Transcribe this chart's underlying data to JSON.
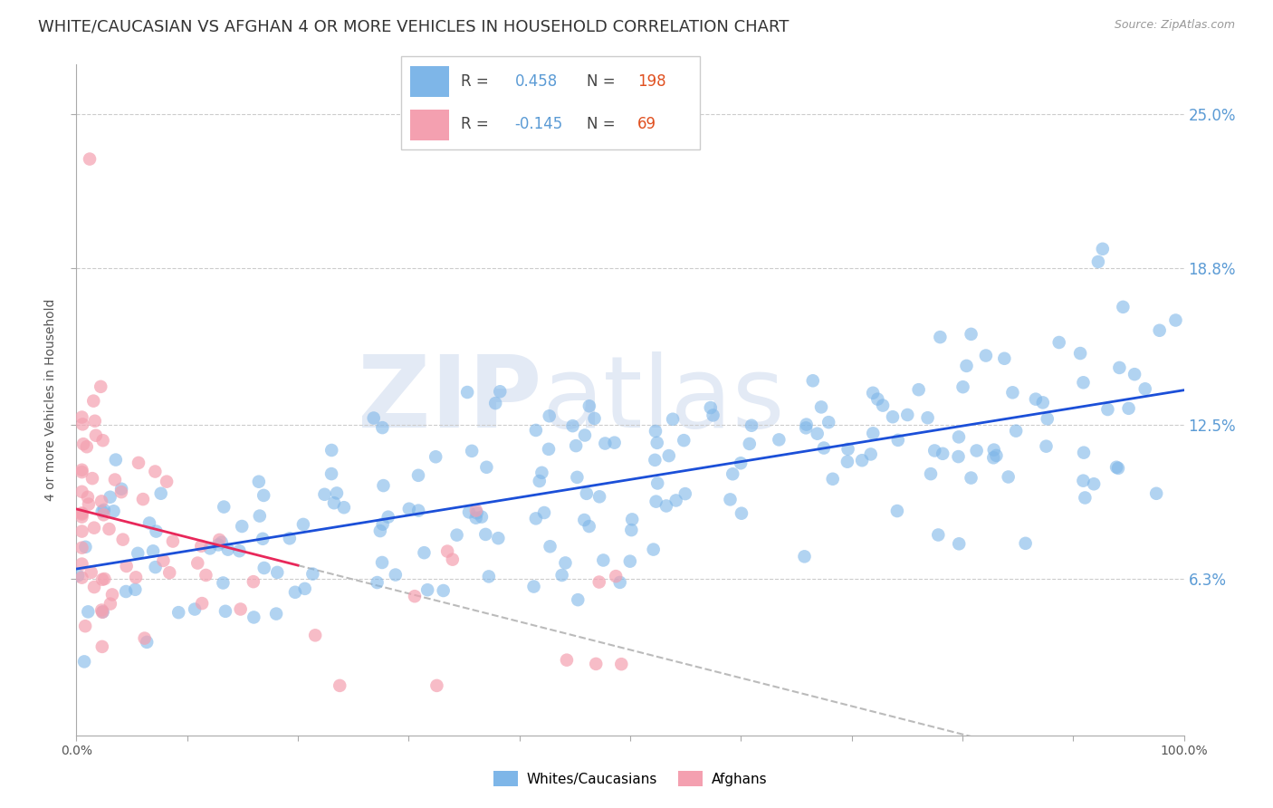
{
  "title": "WHITE/CAUCASIAN VS AFGHAN 4 OR MORE VEHICLES IN HOUSEHOLD CORRELATION CHART",
  "source": "Source: ZipAtlas.com",
  "ylabel": "4 or more Vehicles in Household",
  "ytick_labels": [
    "6.3%",
    "12.5%",
    "18.8%",
    "25.0%"
  ],
  "ytick_values": [
    0.063,
    0.125,
    0.188,
    0.25
  ],
  "xmin": 0.0,
  "xmax": 1.0,
  "ymin": 0.0,
  "ymax": 0.27,
  "legend_blue_r": "0.458",
  "legend_blue_n": "198",
  "legend_pink_r": "-0.145",
  "legend_pink_n": "69",
  "blue_color": "#7EB6E8",
  "pink_color": "#F4A0B0",
  "trendline_blue": "#1B4FD8",
  "trendline_pink": "#E8285A",
  "title_fontsize": 13,
  "axis_label_fontsize": 10,
  "tick_fontsize": 10,
  "r_n_color": "#5B9BD5",
  "n_value_color": "#E05020"
}
